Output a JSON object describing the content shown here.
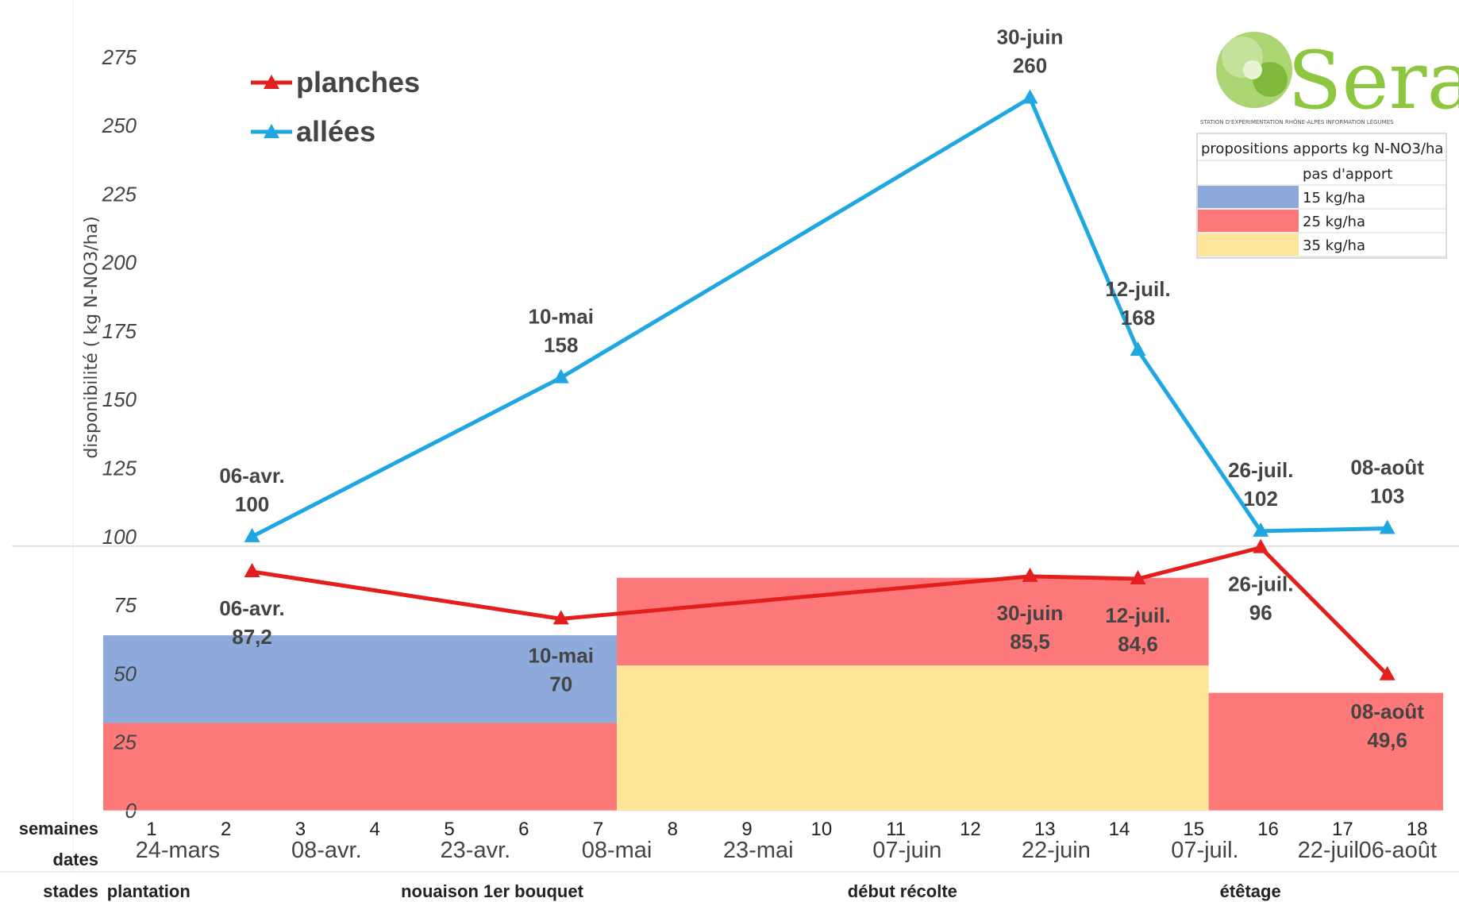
{
  "chart_data": {
    "type": "line",
    "title": "",
    "ylabel": "disponibilité ( kg N-NO3/ha)",
    "yticks": [
      {
        "value": 0,
        "label": "0"
      },
      {
        "value": 25,
        "label": "25"
      },
      {
        "value": 50,
        "label": "50"
      },
      {
        "value": 75,
        "label": "75"
      },
      {
        "value": 100,
        "label": "100"
      },
      {
        "value": 125,
        "label": "125"
      },
      {
        "value": 150,
        "label": "150"
      },
      {
        "value": 175,
        "label": "175"
      },
      {
        "value": 200,
        "label": "200"
      },
      {
        "value": 225,
        "label": "225"
      },
      {
        "value": 250,
        "label": "250"
      },
      {
        "value": 275,
        "label": "275"
      }
    ],
    "ylim": [
      0,
      290
    ],
    "xlim": [
      0.5,
      18.5
    ],
    "legend_position": "top-left",
    "series": [
      {
        "name": "planches",
        "color": "#e41d1d",
        "marker": "triangle",
        "points": [
          {
            "x": 2.5,
            "y": 87.2,
            "date": "06-avr.",
            "value_label": "87,2",
            "label_pos": "below"
          },
          {
            "x": 6.65,
            "y": 70,
            "date": "10-mai",
            "value_label": "70",
            "label_pos": "below"
          },
          {
            "x": 12.95,
            "y": 85.5,
            "date": "30-juin",
            "value_label": "85,5",
            "label_pos": "below"
          },
          {
            "x": 14.4,
            "y": 84.6,
            "date": "12-juil.",
            "value_label": "84,6",
            "label_pos": "below"
          },
          {
            "x": 16.05,
            "y": 96,
            "date": "26-juil.",
            "value_label": "96",
            "label_pos": "below"
          },
          {
            "x": 17.75,
            "y": 49.6,
            "date": "08-août",
            "value_label": "49,6",
            "label_pos": "below"
          }
        ]
      },
      {
        "name": "allées",
        "color": "#1ea7e1",
        "marker": "triangle",
        "points": [
          {
            "x": 2.5,
            "y": 100,
            "date": "06-avr.",
            "value_label": "100",
            "label_pos": "above"
          },
          {
            "x": 6.65,
            "y": 158,
            "date": "10-mai",
            "value_label": "158",
            "label_pos": "above"
          },
          {
            "x": 12.95,
            "y": 260,
            "date": "30-juin",
            "value_label": "260",
            "label_pos": "above"
          },
          {
            "x": 14.4,
            "y": 168,
            "date": "12-juil.",
            "value_label": "168",
            "label_pos": "above"
          },
          {
            "x": 16.05,
            "y": 102,
            "date": "26-juil.",
            "value_label": "102",
            "label_pos": "above"
          },
          {
            "x": 17.75,
            "y": 103,
            "date": "08-août",
            "value_label": "103",
            "label_pos": "above"
          }
        ]
      }
    ],
    "background_bands": [
      {
        "x0": 0.5,
        "x1": 7.4,
        "y0": 0,
        "y1": 32,
        "color": "#fd7878"
      },
      {
        "x0": 0.5,
        "x1": 7.4,
        "y0": 32,
        "y1": 64,
        "color": "#8eaadb"
      },
      {
        "x0": 7.4,
        "x1": 15.35,
        "y0": 0,
        "y1": 53,
        "color": "#fee599"
      },
      {
        "x0": 7.4,
        "x1": 15.35,
        "y0": 53,
        "y1": 85,
        "color": "#fd7878"
      },
      {
        "x0": 15.35,
        "x1": 18.5,
        "y0": 0,
        "y1": 43,
        "color": "#fd7878"
      }
    ]
  },
  "legend_box": {
    "title": "propositions apports kg N-NO3/ha",
    "rows": [
      {
        "label": "pas d'apport",
        "color": "#ffffff"
      },
      {
        "label": "15 kg/ha",
        "color": "#8eaadb"
      },
      {
        "label": "25 kg/ha",
        "color": "#fd7878"
      },
      {
        "label": "35 kg/ha",
        "color": "#fee599"
      }
    ]
  },
  "logo": {
    "text": "Serail",
    "subtitle": "STATION D'EXPÉRIMENTATION RHÔNE-ALPES INFORMATION LÉGUMES"
  },
  "bottom_table": {
    "weeks_label": "semaines",
    "weeks": [
      "1",
      "2",
      "3",
      "4",
      "5",
      "6",
      "7",
      "8",
      "9",
      "10",
      "11",
      "12",
      "13",
      "14",
      "15",
      "16",
      "17",
      "18"
    ],
    "dates_label": "dates",
    "dates": [
      {
        "x": 1.5,
        "label": "24-mars"
      },
      {
        "x": 3.5,
        "label": "08-avr."
      },
      {
        "x": 5.5,
        "label": "23-avr."
      },
      {
        "x": 7.4,
        "label": "08-mai"
      },
      {
        "x": 9.3,
        "label": "23-mai"
      },
      {
        "x": 11.3,
        "label": "07-juin"
      },
      {
        "x": 13.3,
        "label": "22-juin"
      },
      {
        "x": 15.3,
        "label": "07-juil."
      },
      {
        "x": 17.0,
        "label": "22-juil."
      },
      {
        "x": 18.9,
        "label": "06-août"
      }
    ],
    "stages_label": "stades",
    "stages": [
      {
        "x": 0.55,
        "label": "plantation"
      },
      {
        "x": 4.5,
        "label": "nouaison 1er bouquet"
      },
      {
        "x": 10.5,
        "label": "début récolte"
      },
      {
        "x": 15.5,
        "label": "étêtage"
      }
    ]
  }
}
